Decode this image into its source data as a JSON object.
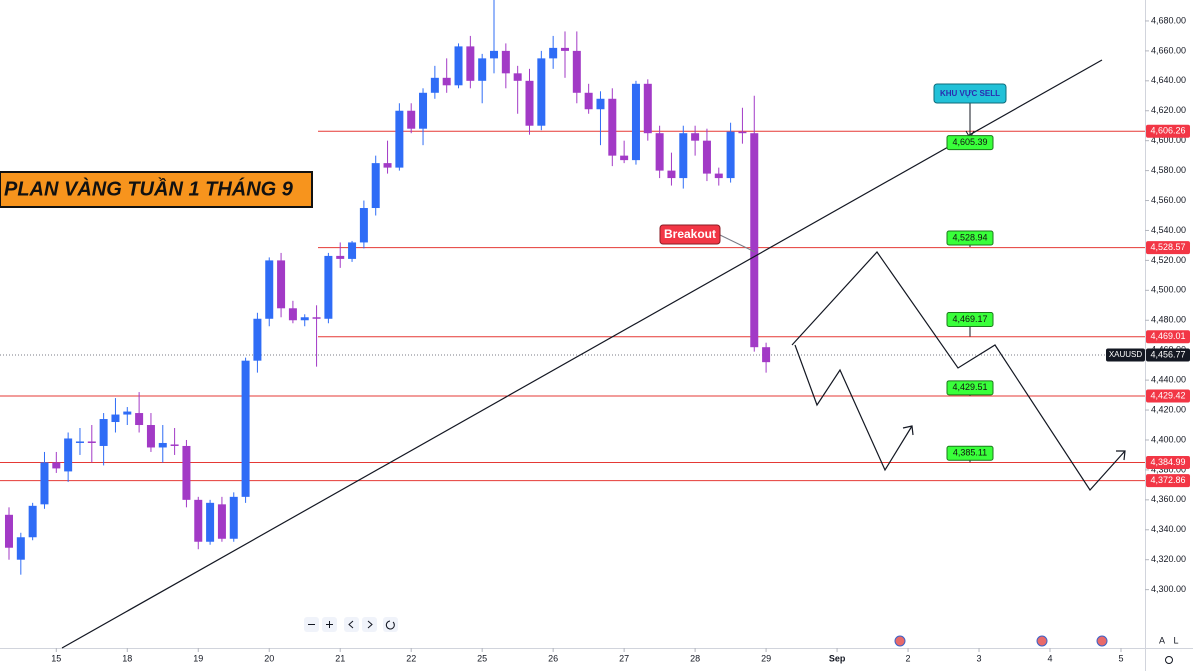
{
  "chart_data": {
    "type": "candlestick",
    "title": "PLAN VÀNG TUẦN 1 THÁNG 9",
    "up_color": "#2f6cf6",
    "down_color": "#a23ac6",
    "open": [
      4350,
      4320,
      4335,
      4357,
      4385,
      4379,
      4398,
      4399,
      4396,
      4412,
      4417,
      4418,
      4410,
      4395,
      4397,
      4396,
      4360,
      4332,
      4357,
      4334,
      4362,
      4453,
      4481,
      4520,
      4488,
      4480,
      4482,
      4481,
      4523,
      4521,
      4532,
      4555,
      4585,
      4582,
      4620,
      4608,
      4632,
      4642,
      4637,
      4663,
      4640,
      4655,
      4660,
      4645,
      4640,
      4610,
      4655,
      4662,
      4660,
      4632,
      4621,
      4628,
      4590,
      4587,
      4638,
      4605,
      4580,
      4575,
      4605,
      4600,
      4578,
      4575,
      4606,
      4605,
      4462
    ],
    "high": [
      4355,
      4338,
      4358,
      4392,
      4392,
      4405,
      4408,
      4410,
      4418,
      4428,
      4422,
      4432,
      4418,
      4410,
      4408,
      4400,
      4362,
      4360,
      4362,
      4365,
      4455,
      4485,
      4522,
      4525,
      4493,
      4484,
      4490,
      4525,
      4532,
      4533,
      4560,
      4590,
      4600,
      4625,
      4625,
      4635,
      4650,
      4655,
      4665,
      4670,
      4658,
      4695,
      4665,
      4650,
      4648,
      4660,
      4670,
      4673,
      4673,
      4638,
      4633,
      4635,
      4600,
      4640,
      4641,
      4610,
      4592,
      4610,
      4610,
      4608,
      4582,
      4612,
      4622,
      4630,
      4465
    ],
    "low": [
      4320,
      4310,
      4333,
      4354,
      4378,
      4372,
      4390,
      4385,
      4383,
      4405,
      4410,
      4405,
      4392,
      4385,
      4390,
      4355,
      4327,
      4330,
      4332,
      4332,
      4358,
      4445,
      4476,
      4482,
      4478,
      4476,
      4449,
      4478,
      4515,
      4519,
      4528,
      4550,
      4578,
      4580,
      4605,
      4597,
      4628,
      4632,
      4635,
      4635,
      4625,
      4645,
      4635,
      4618,
      4604,
      4607,
      4648,
      4642,
      4625,
      4618,
      4597,
      4583,
      4585,
      4584,
      4600,
      4575,
      4570,
      4568,
      4590,
      4573,
      4570,
      4572,
      4598,
      4459,
      4445
    ],
    "close": [
      4328,
      4335,
      4356,
      4385,
      4381,
      4401,
      4399,
      4398,
      4414,
      4417,
      4419,
      4410,
      4395,
      4398,
      4396,
      4360,
      4332,
      4358,
      4334,
      4362,
      4453,
      4481,
      4520,
      4488,
      4480,
      4482,
      4481,
      4523,
      4521,
      4532,
      4555,
      4585,
      4582,
      4620,
      4608,
      4632,
      4642,
      4637,
      4663,
      4640,
      4655,
      4660,
      4645,
      4640,
      4610,
      4655,
      4662,
      4660,
      4632,
      4621,
      4628,
      4590,
      4587,
      4638,
      4605,
      4580,
      4575,
      4605,
      4600,
      4578,
      4575,
      4606,
      4605,
      4462,
      4452
    ],
    "xlim": [
      -0.76,
      96.03
    ],
    "xticks": [
      {
        "value": 4,
        "label": "15"
      },
      {
        "value": 10,
        "label": "18"
      },
      {
        "value": 16,
        "label": "19"
      },
      {
        "value": 22,
        "label": "20"
      },
      {
        "value": 28,
        "label": "21"
      },
      {
        "value": 34,
        "label": "22"
      },
      {
        "value": 40,
        "label": "25"
      },
      {
        "value": 46,
        "label": "26"
      },
      {
        "value": 52,
        "label": "27"
      },
      {
        "value": 58,
        "label": "28"
      },
      {
        "value": 64,
        "label": "29"
      },
      {
        "value": 70,
        "label": "Sep"
      },
      {
        "value": 76,
        "label": "2"
      },
      {
        "value": 82,
        "label": "3"
      },
      {
        "value": 88,
        "label": "4"
      },
      {
        "value": 94,
        "label": "5"
      }
    ],
    "ylim": [
      4261,
      4694
    ],
    "yticks": [
      {
        "value": 4300,
        "label": "4,300.00"
      },
      {
        "value": 4320,
        "label": "4,320.00"
      },
      {
        "value": 4340,
        "label": "4,340.00"
      },
      {
        "value": 4360,
        "label": "4,360.00"
      },
      {
        "value": 4380,
        "label": "4,380.00"
      },
      {
        "value": 4400,
        "label": "4,400.00"
      },
      {
        "value": 4420,
        "label": "4,420.00"
      },
      {
        "value": 4440,
        "label": "4,440.00"
      },
      {
        "value": 4460,
        "label": "4,460.00"
      },
      {
        "value": 4480,
        "label": "4,480.00"
      },
      {
        "value": 4500,
        "label": "4,500.00"
      },
      {
        "value": 4520,
        "label": "4,520.00"
      },
      {
        "value": 4540,
        "label": "4,540.00"
      },
      {
        "value": 4560,
        "label": "4,560.00"
      },
      {
        "value": 4580,
        "label": "4,580.00"
      },
      {
        "value": 4600,
        "label": "4,600.00"
      },
      {
        "value": 4620,
        "label": "4,620.00"
      },
      {
        "value": 4640,
        "label": "4,640.00"
      },
      {
        "value": 4660,
        "label": "4,660.00"
      },
      {
        "value": 4680,
        "label": "4,680.00"
      }
    ],
    "levels": [
      {
        "value": 4606.26,
        "label": "4,606.26"
      },
      {
        "value": 4528.57,
        "label": "4,528.57"
      },
      {
        "value": 4469.01,
        "label": "4,469.01"
      },
      {
        "value": 4429.42,
        "label": "4,429.42"
      },
      {
        "value": 4384.99,
        "label": "4,384.99"
      },
      {
        "value": 4372.86,
        "label": "4,372.86"
      }
    ],
    "targets": [
      {
        "value": 4605.39,
        "label": "4,605.39"
      },
      {
        "value": 4528.94,
        "label": "4,528.94"
      },
      {
        "value": 4469.17,
        "label": "4,469.17"
      },
      {
        "value": 4429.51,
        "label": "4,429.51"
      },
      {
        "value": 4385.11,
        "label": "4,385.11"
      }
    ],
    "last_price": {
      "symbol": "XAUUSD",
      "value": 4456.77,
      "label": "4,456.77"
    },
    "annotations": {
      "breakout": "Breakout",
      "sell_zone": "KHU VỰC SELL"
    },
    "scale_buttons": [
      "A",
      "L"
    ]
  }
}
